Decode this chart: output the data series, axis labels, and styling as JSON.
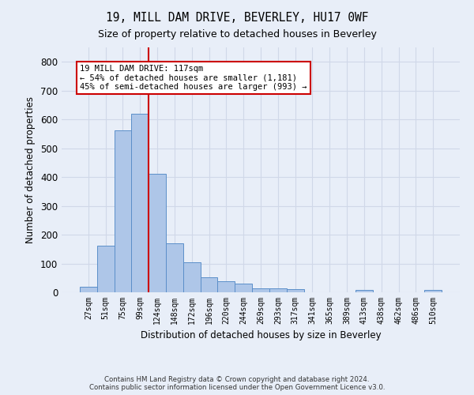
{
  "title_line1": "19, MILL DAM DRIVE, BEVERLEY, HU17 0WF",
  "title_line2": "Size of property relative to detached houses in Beverley",
  "xlabel": "Distribution of detached houses by size in Beverley",
  "ylabel": "Number of detached properties",
  "footer_line1": "Contains HM Land Registry data © Crown copyright and database right 2024.",
  "footer_line2": "Contains public sector information licensed under the Open Government Licence v3.0.",
  "bar_labels": [
    "27sqm",
    "51sqm",
    "75sqm",
    "99sqm",
    "124sqm",
    "148sqm",
    "172sqm",
    "196sqm",
    "220sqm",
    "244sqm",
    "269sqm",
    "293sqm",
    "317sqm",
    "341sqm",
    "365sqm",
    "389sqm",
    "413sqm",
    "438sqm",
    "462sqm",
    "486sqm",
    "510sqm"
  ],
  "bar_values": [
    18,
    163,
    562,
    620,
    410,
    170,
    103,
    51,
    38,
    30,
    14,
    13,
    10,
    0,
    0,
    0,
    7,
    0,
    0,
    0,
    7
  ],
  "bar_color": "#aec6e8",
  "bar_edge_color": "#5b8fc9",
  "grid_color": "#d0d8e8",
  "background_color": "#e8eef8",
  "red_line_color": "#cc0000",
  "annotation_text": "19 MILL DAM DRIVE: 117sqm\n← 54% of detached houses are smaller (1,181)\n45% of semi-detached houses are larger (993) →",
  "annotation_box_color": "#ffffff",
  "annotation_box_edge": "#cc0000",
  "ylim": [
    0,
    850
  ],
  "yticks": [
    0,
    100,
    200,
    300,
    400,
    500,
    600,
    700,
    800
  ]
}
